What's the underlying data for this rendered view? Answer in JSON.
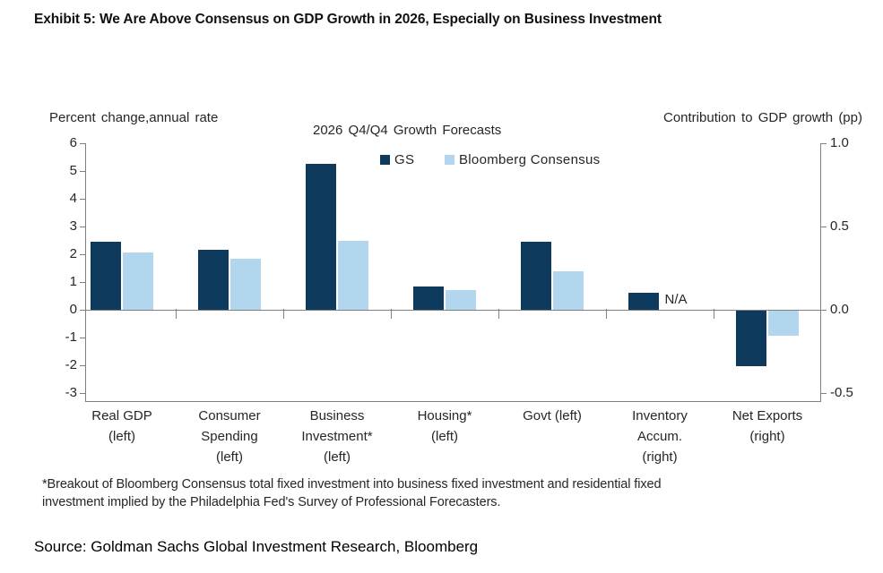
{
  "exhibit_title": "Exhibit 5: We Are Above Consensus on GDP Growth in 2026, Especially on Business Investment",
  "footnote_lines": [
    "*Breakout of Bloomberg Consensus total fixed investment into business fixed investment and residential fixed",
    "investment implied by the Philadelphia Fed's Survey of Professional Forecasters."
  ],
  "source_line": "Source: Goldman Sachs Global Investment Research, Bloomberg",
  "colors": {
    "gs_bar": "#0E3A5D",
    "consensus_bar": "#B3D6EF",
    "axis": "#808080",
    "text": "#262626"
  },
  "chart_data": {
    "type": "bar",
    "title": "2026 Q4/Q4 Growth Forecasts",
    "left_axis_label": "Percent change,annual rate",
    "right_axis_label": "Contribution to GDP growth (pp)",
    "left_axis": {
      "min": -3,
      "max": 6,
      "ticks": [
        6,
        5,
        4,
        3,
        2,
        1,
        0,
        -1,
        -2,
        -3
      ]
    },
    "right_axis": {
      "min": -0.5,
      "max": 1.0,
      "ticks": [
        1.0,
        0.5,
        0.0,
        -0.5
      ]
    },
    "grid": false,
    "legend_position": "top-center",
    "na_label": "N/A",
    "categories": [
      {
        "label": "Real GDP (left)",
        "label_lines": [
          "Real GDP",
          "(left)"
        ],
        "axis": "left"
      },
      {
        "label": "Consumer Spending (left)",
        "label_lines": [
          "Consumer",
          "Spending",
          "(left)"
        ],
        "axis": "left"
      },
      {
        "label": "Business Investment* (left)",
        "label_lines": [
          "Business",
          "Investment*",
          "(left)"
        ],
        "axis": "left"
      },
      {
        "label": "Housing* (left)",
        "label_lines": [
          "Housing*",
          "(left)"
        ],
        "axis": "left"
      },
      {
        "label": "Govt (left)",
        "label_lines": [
          "Govt (left)"
        ],
        "axis": "left"
      },
      {
        "label": "Inventory Accum. (right)",
        "label_lines": [
          "Inventory",
          "Accum.",
          "(right)"
        ],
        "axis": "right"
      },
      {
        "label": "Net Exports (right)",
        "label_lines": [
          "Net Exports",
          "(right)"
        ],
        "axis": "right"
      }
    ],
    "series": [
      {
        "name": "GS",
        "color": "#0E3A5D",
        "values_native_axis": [
          2.45,
          2.15,
          5.25,
          0.85,
          2.45,
          0.1,
          -0.33
        ],
        "plotted_left_axis_units": [
          2.45,
          2.15,
          5.25,
          0.85,
          2.45,
          0.6,
          -2.0
        ]
      },
      {
        "name": "Bloomberg Consensus",
        "color": "#B3D6EF",
        "values_native_axis": [
          2.05,
          1.85,
          2.5,
          0.7,
          1.4,
          null,
          -0.15
        ],
        "plotted_left_axis_units": [
          2.05,
          1.85,
          2.5,
          0.7,
          1.4,
          null,
          -0.9
        ]
      }
    ]
  }
}
